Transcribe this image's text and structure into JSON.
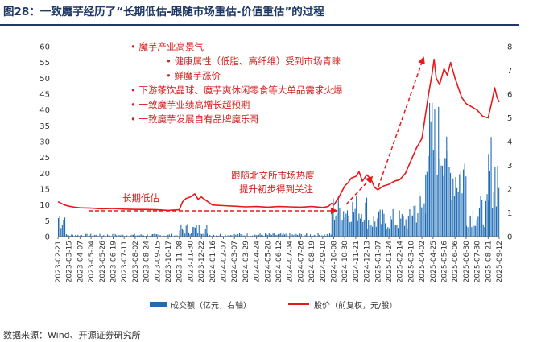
{
  "figure_title": "图28：一致魔芋经历了“长期低估-跟随市场重估-价值重估”的过程",
  "source": "数据来源：Wind、开源证券研究所",
  "colors": {
    "price": "#e8191c",
    "volume": "#1f6cb6",
    "title": "#1f3864",
    "annotation": "#d62020"
  },
  "chart_data": {
    "type": "line",
    "title": "",
    "left_axis": {
      "ylim": [
        0,
        60
      ],
      "ticks": [
        0,
        5,
        10,
        15,
        20,
        25,
        30,
        35,
        40,
        45,
        50,
        55,
        60
      ]
    },
    "right_axis": {
      "ylim": [
        0,
        8
      ],
      "ticks": [
        0,
        1,
        2,
        3,
        4,
        5,
        6,
        7,
        8
      ]
    },
    "x_ticks": [
      "2023-02-21",
      "2023-03-15",
      "2023-04-07",
      "2023-05-04",
      "2023-05-26",
      "2023-06-19",
      "2023-07-11",
      "2023-08-02",
      "2023-08-24",
      "2023-09-15",
      "2023-10-17",
      "2023-11-08",
      "2023-11-30",
      "2023-12-22",
      "2024-01-16",
      "2024-02-07",
      "2024-03-07",
      "2024-03-29",
      "2024-04-24",
      "2024-05-20",
      "2024-06-12",
      "2024-07-04",
      "2024-07-26",
      "2024-08-19",
      "2024-09-10",
      "2024-10-08",
      "2024-10-30",
      "2024-11-21",
      "2024-12-13",
      "2025-01-07",
      "2025-01-24",
      "2025-02-14",
      "2025-03-10",
      "2025-04-02",
      "2025-04-25",
      "2025-05-16",
      "2025-06-06",
      "2025-06-30",
      "2025-07-30",
      "2025-08-21",
      "2025-09-12"
    ],
    "series": [
      {
        "name": "股价（前复权，元/股）",
        "axis": "left",
        "points": [
          [
            0,
            11
          ],
          [
            0.3,
            10.5
          ],
          [
            0.6,
            10
          ],
          [
            1,
            9.6
          ],
          [
            1.5,
            9.3
          ],
          [
            2,
            9.1
          ],
          [
            3,
            9
          ],
          [
            4,
            8.8
          ],
          [
            5,
            8.9
          ],
          [
            6,
            8.7
          ],
          [
            7,
            8.6
          ],
          [
            8,
            8.6
          ],
          [
            9,
            8.5
          ],
          [
            10,
            8.3
          ],
          [
            11,
            8.5
          ],
          [
            11.3,
            11
          ],
          [
            11.6,
            12
          ],
          [
            12,
            12.5
          ],
          [
            12.4,
            13.5
          ],
          [
            12.7,
            11.8
          ],
          [
            13,
            12.5
          ],
          [
            13.4,
            11.5
          ],
          [
            14,
            10
          ],
          [
            15,
            9.8
          ],
          [
            16,
            9.6
          ],
          [
            17,
            9.4
          ],
          [
            18,
            9.5
          ],
          [
            19,
            9.3
          ],
          [
            20,
            9.5
          ],
          [
            21,
            9.4
          ],
          [
            22,
            9.3
          ],
          [
            23,
            9.5
          ],
          [
            24,
            9.2
          ],
          [
            24.5,
            9.5
          ],
          [
            24.8,
            10.5
          ],
          [
            25,
            10
          ],
          [
            25.4,
            12
          ],
          [
            25.7,
            14
          ],
          [
            26,
            16
          ],
          [
            26.3,
            17
          ],
          [
            26.6,
            18.5
          ],
          [
            27,
            19
          ],
          [
            27.3,
            20.5
          ],
          [
            27.6,
            17.5
          ],
          [
            28,
            19.5
          ],
          [
            28.4,
            18
          ],
          [
            28.7,
            15.5
          ],
          [
            29,
            14.8
          ],
          [
            29.5,
            16
          ],
          [
            30,
            16.5
          ],
          [
            30.5,
            17.5
          ],
          [
            31,
            18
          ],
          [
            31.5,
            20
          ],
          [
            32,
            24
          ],
          [
            32.5,
            28
          ],
          [
            33,
            31
          ],
          [
            33.3,
            38
          ],
          [
            33.6,
            45
          ],
          [
            33.9,
            51
          ],
          [
            34.1,
            56
          ],
          [
            34.3,
            50
          ],
          [
            34.6,
            48
          ],
          [
            35,
            53
          ],
          [
            35.3,
            51
          ],
          [
            35.6,
            55
          ],
          [
            36,
            50
          ],
          [
            36.3,
            47
          ],
          [
            36.6,
            44
          ],
          [
            37,
            42
          ],
          [
            37.5,
            41
          ],
          [
            38,
            40
          ],
          [
            38.5,
            38
          ],
          [
            39,
            37.5
          ],
          [
            39.3,
            42
          ],
          [
            39.6,
            47
          ],
          [
            39.8,
            44
          ],
          [
            40,
            42.5
          ]
        ]
      },
      {
        "name": "成交额（亿元，右轴）",
        "axis": "right",
        "type": "bar",
        "segments": [
          {
            "x0": 0,
            "x1": 0.6,
            "lo": 0.3,
            "hi": 1.6
          },
          {
            "x0": 0.6,
            "x1": 11,
            "lo": 0.02,
            "hi": 0.12
          },
          {
            "x0": 11,
            "x1": 13.5,
            "lo": 0.1,
            "hi": 0.6
          },
          {
            "x0": 13.5,
            "x1": 24.8,
            "lo": 0.02,
            "hi": 0.15
          },
          {
            "x0": 24.8,
            "x1": 28,
            "lo": 0.6,
            "hi": 1.9
          },
          {
            "x0": 28,
            "x1": 32,
            "lo": 0.3,
            "hi": 1.2
          },
          {
            "x0": 32,
            "x1": 33.3,
            "lo": 0.5,
            "hi": 2.3
          },
          {
            "x0": 33.3,
            "x1": 35.2,
            "lo": 2.5,
            "hi": 6.0
          },
          {
            "x0": 35.2,
            "x1": 37,
            "lo": 1.5,
            "hi": 4.3
          },
          {
            "x0": 37,
            "x1": 39,
            "lo": 0.4,
            "hi": 1.8
          },
          {
            "x0": 39,
            "x1": 40,
            "lo": 1.2,
            "hi": 4.6
          }
        ]
      }
    ],
    "annotations": [
      "•  魔芋产业高景气",
      "•  健康属性（低脂、高纤维）受到市场青睐",
      "•  鲜魔芋涨价",
      "•  下游茶饮晶球、魔芋爽休闲零食等大单品需求火爆",
      "•  一致魔芋业绩高增长超预期",
      "•  一致魔芋发展自有品牌魔乐哥",
      "长期低估",
      "跟随北交所市场热度",
      "提升初步得到关注"
    ],
    "legend": {
      "position": "bottom"
    }
  }
}
